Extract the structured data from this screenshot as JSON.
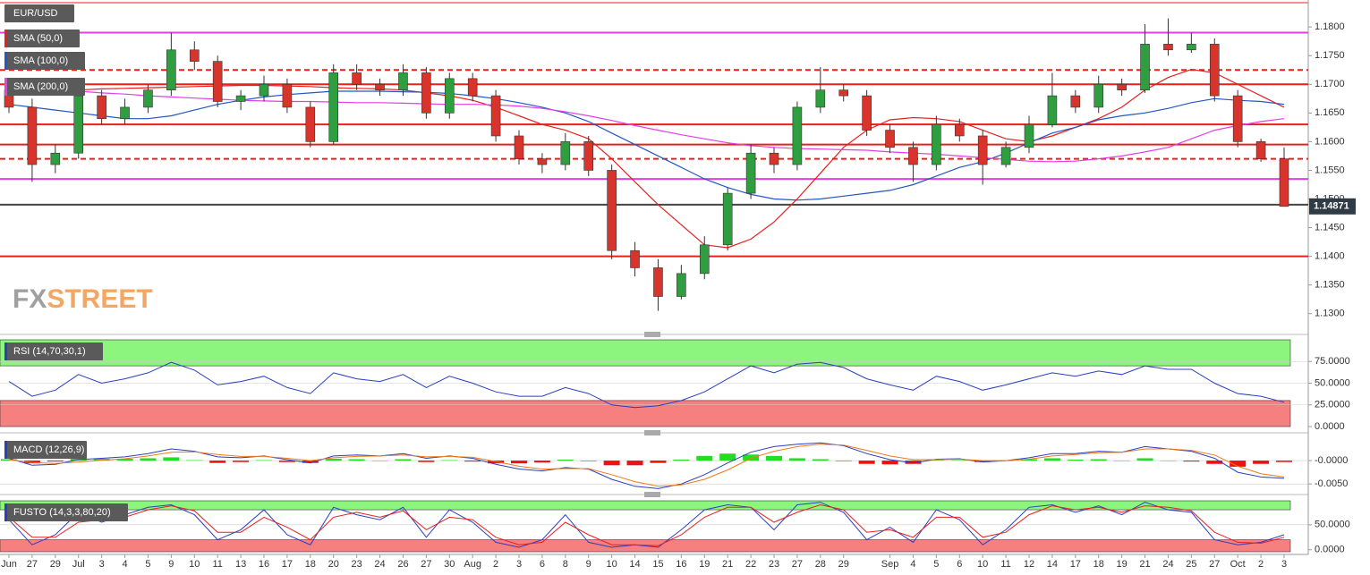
{
  "chart_data": [
    {
      "type": "candlestick",
      "title": "EUR/USD",
      "categories": [
        "Jun",
        "27",
        "29",
        "Jul",
        "3",
        "4",
        "5",
        "9",
        "10",
        "11",
        "13",
        "16",
        "17",
        "18",
        "20",
        "23",
        "24",
        "26",
        "27",
        "30",
        "Aug",
        "2",
        "3",
        "6",
        "8",
        "9",
        "10",
        "14",
        "15",
        "16",
        "19",
        "21",
        "22",
        "23",
        "27",
        "28",
        "29",
        null,
        "Sep",
        "4",
        "5",
        "6",
        "10",
        "11",
        "12",
        "14",
        "17",
        "18",
        "19",
        "21",
        "24",
        "25",
        "27",
        "Oct",
        "2",
        "3"
      ],
      "open": [
        1.169,
        1.166,
        1.156,
        1.158,
        1.168,
        1.164,
        1.166,
        1.169,
        1.176,
        1.174,
        1.167,
        1.168,
        1.17,
        1.166,
        1.16,
        1.172,
        1.17,
        1.169,
        1.172,
        1.165,
        1.171,
        1.168,
        1.161,
        1.157,
        1.156,
        1.16,
        1.155,
        1.141,
        1.138,
        1.133,
        1.137,
        1.142,
        1.151,
        1.158,
        1.156,
        1.166,
        1.169,
        1.168,
        1.162,
        1.159,
        1.156,
        1.163,
        1.161,
        1.156,
        1.159,
        1.163,
        1.168,
        1.166,
        1.17,
        1.169,
        1.177,
        1.176,
        1.177,
        1.168,
        1.16,
        1.157
      ],
      "high": [
        1.1705,
        1.1675,
        1.1595,
        1.1695,
        1.169,
        1.1675,
        1.17,
        1.179,
        1.1775,
        1.175,
        1.169,
        1.1715,
        1.171,
        1.167,
        1.1735,
        1.1735,
        1.171,
        1.1735,
        1.173,
        1.172,
        1.172,
        1.169,
        1.162,
        1.158,
        1.1615,
        1.161,
        1.156,
        1.1425,
        1.1395,
        1.1385,
        1.1435,
        1.152,
        1.1595,
        1.159,
        1.167,
        1.173,
        1.17,
        1.169,
        1.163,
        1.16,
        1.1645,
        1.164,
        1.162,
        1.16,
        1.1645,
        1.172,
        1.169,
        1.1715,
        1.171,
        1.1805,
        1.1815,
        1.179,
        1.178,
        1.169,
        1.1605,
        1.159
      ],
      "low": [
        1.165,
        1.153,
        1.1545,
        1.157,
        1.163,
        1.163,
        1.165,
        1.168,
        1.1725,
        1.166,
        1.1655,
        1.167,
        1.165,
        1.159,
        1.1595,
        1.169,
        1.168,
        1.168,
        1.164,
        1.164,
        1.167,
        1.16,
        1.156,
        1.1545,
        1.155,
        1.154,
        1.1395,
        1.1365,
        1.1305,
        1.1325,
        1.136,
        1.141,
        1.15,
        1.1545,
        1.155,
        1.165,
        1.167,
        1.161,
        1.158,
        1.153,
        1.155,
        1.16,
        1.1525,
        1.1555,
        1.158,
        1.1625,
        1.165,
        1.165,
        1.168,
        1.1685,
        1.175,
        1.1755,
        1.167,
        1.159,
        1.1565,
        1.1487
      ],
      "close": [
        1.166,
        1.156,
        1.158,
        1.168,
        1.164,
        1.166,
        1.169,
        1.176,
        1.174,
        1.167,
        1.168,
        1.17,
        1.166,
        1.16,
        1.172,
        1.17,
        1.169,
        1.172,
        1.165,
        1.171,
        1.168,
        1.161,
        1.157,
        1.156,
        1.16,
        1.155,
        1.141,
        1.138,
        1.133,
        1.137,
        1.142,
        1.151,
        1.158,
        1.156,
        1.166,
        1.169,
        1.168,
        1.162,
        1.159,
        1.156,
        1.163,
        1.161,
        1.156,
        1.159,
        1.163,
        1.168,
        1.166,
        1.17,
        1.169,
        1.177,
        1.176,
        1.177,
        1.168,
        1.16,
        1.157,
        1.14871
      ],
      "up_color": "#2e9e3e",
      "down_color": "#d9342b",
      "series": [
        {
          "name": "SMA (50,0)",
          "color": "#e8201c",
          "values": [
            1.168,
            1.1685,
            1.1688,
            1.169,
            1.1692,
            1.1693,
            1.1694,
            1.1695,
            1.1696,
            1.1697,
            1.1698,
            1.1698,
            1.1697,
            1.1696,
            1.1694,
            1.1693,
            1.1692,
            1.169,
            1.1685,
            1.168,
            1.1672,
            1.166,
            1.1645,
            1.163,
            1.162,
            1.1605,
            1.157,
            1.153,
            1.149,
            1.1455,
            1.142,
            1.1415,
            1.143,
            1.146,
            1.15,
            1.1545,
            1.159,
            1.162,
            1.1638,
            1.1642,
            1.164,
            1.1635,
            1.162,
            1.1605,
            1.16,
            1.161,
            1.1625,
            1.164,
            1.166,
            1.169,
            1.1712,
            1.1726,
            1.172,
            1.17,
            1.168,
            1.166
          ]
        },
        {
          "name": "SMA (100,0)",
          "color": "#2456c4",
          "values": [
            1.1665,
            1.166,
            1.1655,
            1.165,
            1.1645,
            1.164,
            1.164,
            1.1645,
            1.1655,
            1.1665,
            1.1672,
            1.1678,
            1.1682,
            1.1685,
            1.1688,
            1.1688,
            1.1688,
            1.1687,
            1.1686,
            1.1684,
            1.168,
            1.1675,
            1.1668,
            1.166,
            1.165,
            1.1635,
            1.1615,
            1.1595,
            1.1575,
            1.1555,
            1.1535,
            1.152,
            1.1508,
            1.15,
            1.1498,
            1.15,
            1.1505,
            1.151,
            1.1515,
            1.1525,
            1.154,
            1.1555,
            1.1565,
            1.158,
            1.1598,
            1.1615,
            1.1625,
            1.1638,
            1.1645,
            1.165,
            1.1658,
            1.1668,
            1.1675,
            1.1672,
            1.167,
            1.1665
          ]
        },
        {
          "name": "SMA (200,0)",
          "color": "#e23ee6",
          "values": [
            1.17,
            1.1695,
            1.169,
            1.1688,
            1.1685,
            1.1683,
            1.168,
            1.1678,
            1.1676,
            1.1674,
            1.1672,
            1.1671,
            1.167,
            1.167,
            1.1669,
            1.1668,
            1.1668,
            1.1667,
            1.1666,
            1.1665,
            1.1665,
            1.1664,
            1.1662,
            1.1658,
            1.1652,
            1.1645,
            1.1637,
            1.1628,
            1.162,
            1.1612,
            1.1605,
            1.1598,
            1.1593,
            1.159,
            1.1588,
            1.1587,
            1.1586,
            1.1585,
            1.1582,
            1.158,
            1.1578,
            1.1575,
            1.1572,
            1.1569,
            1.1566,
            1.1565,
            1.1566,
            1.157,
            1.1575,
            1.1582,
            1.159,
            1.1605,
            1.162,
            1.1628,
            1.1635,
            1.164
          ]
        }
      ],
      "levels": [
        {
          "value": 1.179,
          "color": "#e23ee6",
          "dashed": false
        },
        {
          "value": 1.1725,
          "color": "#e8201c",
          "dashed": true
        },
        {
          "value": 1.17,
          "color": "#e8201c",
          "dashed": false
        },
        {
          "value": 1.163,
          "color": "#e8201c",
          "dashed": false
        },
        {
          "value": 1.1595,
          "color": "#e8201c",
          "dashed": false
        },
        {
          "value": 1.157,
          "color": "#e8201c",
          "dashed": true
        },
        {
          "value": 1.1535,
          "color": "#e23ee6",
          "dashed": false
        },
        {
          "value": 1.149,
          "color": "#444444",
          "dashed": false
        },
        {
          "value": 1.14,
          "color": "#e8201c",
          "dashed": false
        }
      ],
      "last_price": 1.14871,
      "watermark": [
        "FX",
        "STREET"
      ],
      "ylim": [
        1.127,
        1.1847
      ],
      "yticks": [
        {
          "value": 1.18,
          "label": "1.1800"
        },
        {
          "value": 1.175,
          "label": "1.1750"
        },
        {
          "value": 1.17,
          "label": "1.1700"
        },
        {
          "value": 1.165,
          "label": "1.1650"
        },
        {
          "value": 1.16,
          "label": "1.1600"
        },
        {
          "value": 1.155,
          "label": "1.1550"
        },
        {
          "value": 1.15,
          "label": "1.1500"
        },
        {
          "value": 1.145,
          "label": "1.1450"
        },
        {
          "value": 1.14,
          "label": "1.1400"
        },
        {
          "value": 1.135,
          "label": "1.1350"
        },
        {
          "value": 1.13,
          "label": "1.1300"
        }
      ]
    },
    {
      "type": "line",
      "title": "RSI (14,70,30,1)",
      "bands": [
        30,
        70
      ],
      "series": [
        {
          "color": "#2a3fc0",
          "values": [
            52,
            35,
            42,
            60,
            50,
            55,
            62,
            74,
            65,
            48,
            52,
            58,
            45,
            38,
            62,
            55,
            52,
            60,
            45,
            58,
            50,
            40,
            35,
            35,
            45,
            38,
            25,
            22,
            24,
            30,
            40,
            55,
            70,
            62,
            72,
            74,
            68,
            55,
            48,
            42,
            58,
            52,
            42,
            48,
            55,
            62,
            58,
            64,
            60,
            70,
            66,
            66,
            50,
            38,
            35,
            28
          ]
        }
      ],
      "ylim": [
        0,
        100
      ],
      "yticks": [
        {
          "value": 75,
          "label": "75.0000"
        },
        {
          "value": 50,
          "label": "50.0000"
        },
        {
          "value": 25,
          "label": "25.0000"
        },
        {
          "value": 0,
          "label": "0.0000"
        }
      ]
    },
    {
      "type": "line",
      "title": "MACD (12,26,9)",
      "series": [
        {
          "type": "bar",
          "color": "#22dd22",
          "negative_color": "#ee1111",
          "values": [
            0.0003,
            -0.0006,
            -0.0002,
            0.0005,
            0.0004,
            0.0004,
            0.0005,
            0.0007,
            0.0001,
            -0.0005,
            -0.0003,
            0.0001,
            -0.0003,
            -0.0005,
            0.0004,
            0.0003,
            0.0,
            0.0003,
            -0.0003,
            0.0001,
            -0.0002,
            -0.0006,
            -0.0006,
            -0.0004,
            0.0002,
            -0.0001,
            -0.001,
            -0.001,
            -0.0005,
            0.0002,
            0.001,
            0.0015,
            0.0013,
            0.001,
            0.0005,
            0.0003,
            -0.0001,
            -0.0007,
            -0.0008,
            -0.0007,
            0.0001,
            0.0001,
            -0.0003,
            0.0,
            0.0003,
            0.0005,
            0.0002,
            0.0003,
            0.0,
            0.0005,
            0.0,
            -0.0002,
            -0.0007,
            -0.0013,
            -0.0007,
            -0.0003
          ]
        },
        {
          "color": "#2a3fc0",
          "values": [
            0.0005,
            -0.001,
            -0.0008,
            0.0002,
            0.0005,
            0.0008,
            0.0015,
            0.0025,
            0.002,
            0.0008,
            0.0006,
            0.001,
            0.0002,
            -0.0005,
            0.001,
            0.0012,
            0.001,
            0.0015,
            0.0005,
            0.001,
            0.0005,
            -0.0008,
            -0.0018,
            -0.0022,
            -0.0015,
            -0.0018,
            -0.004,
            -0.0055,
            -0.006,
            -0.005,
            -0.003,
            -0.0005,
            0.0018,
            0.003,
            0.0035,
            0.0038,
            0.0032,
            0.0015,
            0.0002,
            -0.0005,
            0.0003,
            0.0004,
            -0.0003,
            0.0,
            0.0006,
            0.0015,
            0.0015,
            0.002,
            0.0018,
            0.003,
            0.0025,
            0.002,
            0.0005,
            -0.0025,
            -0.0035,
            -0.0038
          ]
        },
        {
          "color": "#f07a1a",
          "values": [
            0.0002,
            -0.0004,
            -0.0006,
            -0.0003,
            0.0001,
            0.0004,
            0.001,
            0.0018,
            0.0019,
            0.0013,
            0.0009,
            0.0009,
            0.0005,
            0.0,
            0.0006,
            0.0009,
            0.001,
            0.0012,
            0.0008,
            0.0009,
            0.0007,
            -0.0002,
            -0.0012,
            -0.0018,
            -0.0017,
            -0.0017,
            -0.003,
            -0.0045,
            -0.0055,
            -0.0052,
            -0.004,
            -0.002,
            0.0005,
            0.002,
            0.003,
            0.0035,
            0.0033,
            0.0022,
            0.001,
            0.0002,
            0.0002,
            0.0003,
            0.0,
            0.0,
            0.0003,
            0.001,
            0.0013,
            0.0017,
            0.0018,
            0.0025,
            0.0025,
            0.0022,
            0.0012,
            -0.0012,
            -0.0028,
            -0.0035
          ]
        }
      ],
      "ylim": [
        -0.0063,
        0.0048
      ],
      "yticks": [
        {
          "value": 0,
          "label": "-0.0000"
        },
        {
          "value": -0.005,
          "label": "-0.0050"
        }
      ]
    },
    {
      "type": "line",
      "title": "FUSTO (14,3,3,80,20)",
      "bands": [
        20,
        80
      ],
      "series": [
        {
          "color": "#2a3fc0",
          "values": [
            60,
            10,
            30,
            75,
            55,
            70,
            85,
            90,
            70,
            20,
            40,
            80,
            30,
            10,
            85,
            70,
            60,
            85,
            25,
            80,
            55,
            15,
            5,
            20,
            70,
            15,
            5,
            10,
            5,
            40,
            80,
            90,
            85,
            40,
            90,
            95,
            75,
            20,
            45,
            15,
            80,
            60,
            10,
            40,
            85,
            90,
            75,
            88,
            70,
            95,
            80,
            75,
            20,
            10,
            15,
            30
          ]
        },
        {
          "color": "#e8201c",
          "values": [
            65,
            25,
            25,
            55,
            60,
            65,
            80,
            88,
            78,
            35,
            35,
            65,
            45,
            20,
            65,
            75,
            65,
            78,
            40,
            65,
            60,
            25,
            10,
            15,
            55,
            30,
            10,
            10,
            8,
            30,
            65,
            85,
            85,
            55,
            75,
            90,
            80,
            35,
            40,
            25,
            65,
            65,
            25,
            35,
            70,
            88,
            80,
            85,
            75,
            88,
            85,
            78,
            35,
            15,
            13,
            25
          ]
        }
      ],
      "ylim": [
        -4,
        98
      ],
      "yticks": [
        {
          "value": 50,
          "label": "50.0000"
        },
        {
          "value": 0,
          "label": "0.0000"
        }
      ]
    }
  ]
}
